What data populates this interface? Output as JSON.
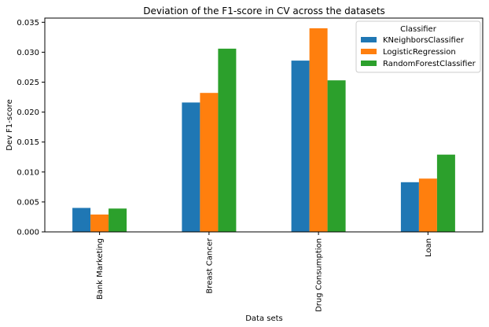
{
  "chart_data": {
    "type": "bar",
    "title": "Deviation of the F1-score in CV across the datasets",
    "xlabel": "Data sets",
    "ylabel": "Dev F1-score",
    "categories": [
      "Bank Marketing",
      "Breast Cancer",
      "Drug Consumption",
      "Loan"
    ],
    "ylim": [
      0,
      0.0357
    ],
    "yticks": [
      "0.000",
      "0.005",
      "0.010",
      "0.015",
      "0.020",
      "0.025",
      "0.030",
      "0.035"
    ],
    "ytick_values": [
      0.0,
      0.005,
      0.01,
      0.015,
      0.02,
      0.025,
      0.03,
      0.035
    ],
    "grid": false,
    "legend": {
      "title": "Classifier",
      "placement": "top-right"
    },
    "series": [
      {
        "name": "KNeighborsClassifier",
        "color": "#1f77b4",
        "values": [
          0.004,
          0.0216,
          0.0286,
          0.0083
        ]
      },
      {
        "name": "LogisticRegression",
        "color": "#ff7f0e",
        "values": [
          0.0029,
          0.0232,
          0.034,
          0.0089
        ]
      },
      {
        "name": "RandomForestClassifier",
        "color": "#2ca02c",
        "values": [
          0.0039,
          0.0306,
          0.0253,
          0.0129
        ]
      }
    ]
  }
}
